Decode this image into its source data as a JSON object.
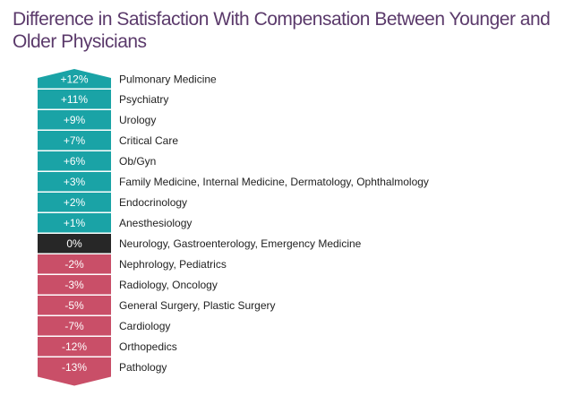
{
  "title": "Difference in Satisfaction With Compensation Between Younger and Older Physicians",
  "colors": {
    "positive": "#1aa3a6",
    "zero": "#272727",
    "negative": "#c94f68",
    "title": "#5b3a6b",
    "label_text": "#222222",
    "value_text": "#ffffff"
  },
  "chart_data": {
    "type": "bar",
    "style": "stacked arrow with value labels",
    "categories": [
      "Pulmonary Medicine",
      "Psychiatry",
      "Urology",
      "Critical Care",
      "Ob/Gyn",
      "Family Medicine, Internal Medicine, Dermatology, Ophthalmology",
      "Endocrinology",
      "Anesthesiology",
      "Neurology, Gastroenterology, Emergency Medicine",
      "Nephrology, Pediatrics",
      "Radiology, Oncology",
      "General Surgery, Plastic Surgery",
      "Cardiology",
      "Orthopedics",
      "Pathology"
    ],
    "values": [
      12,
      11,
      9,
      7,
      6,
      3,
      2,
      1,
      0,
      -2,
      -3,
      -5,
      -7,
      -12,
      -13
    ],
    "value_labels": [
      "+12%",
      "+11%",
      "+9%",
      "+7%",
      "+6%",
      "+3%",
      "+2%",
      "+1%",
      "0%",
      "-2%",
      "-3%",
      "-5%",
      "-7%",
      "-12%",
      "-13%"
    ],
    "unit": "%",
    "legend": "none",
    "grid": false
  }
}
